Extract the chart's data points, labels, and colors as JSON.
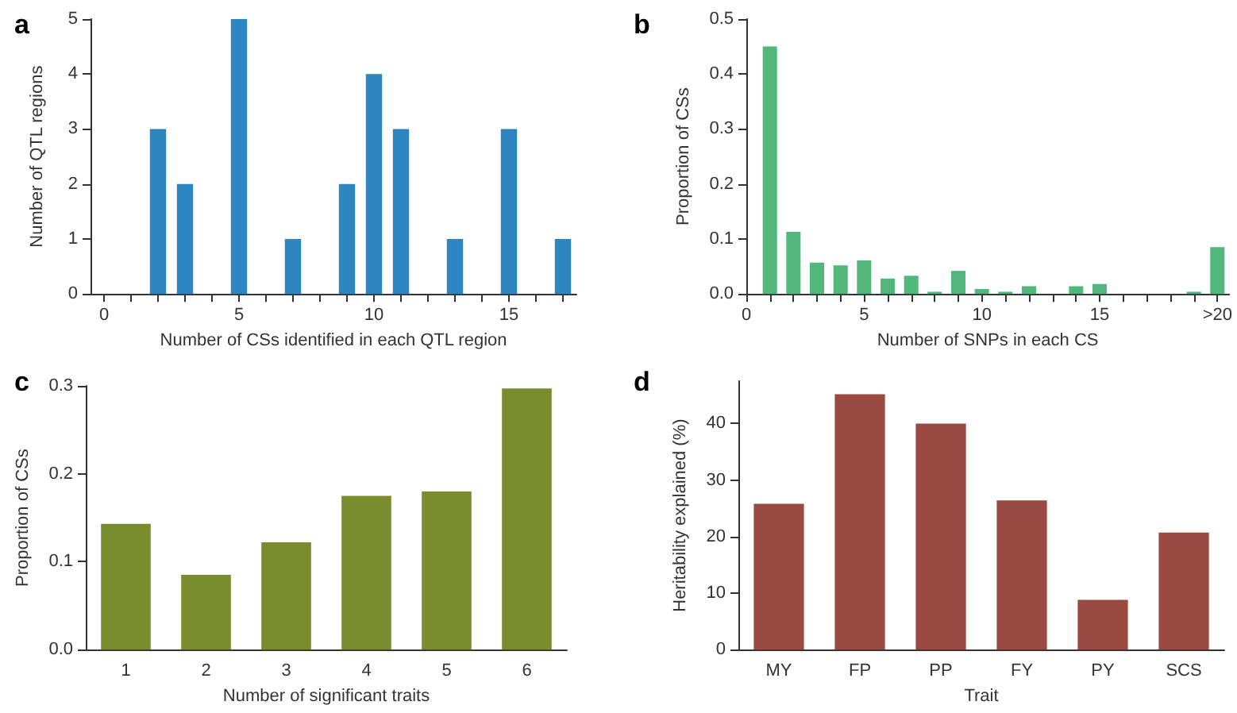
{
  "chart_data": [
    {
      "type": "bar",
      "title": "a",
      "xlabel": "Number of CSs identified in each QTL region",
      "ylabel": "Number of QTL regions",
      "color": "#2e86c1",
      "x": [
        2,
        3,
        5,
        7,
        9,
        10,
        11,
        13,
        15,
        17
      ],
      "values": [
        3,
        2,
        5,
        1,
        2,
        4,
        3,
        1,
        3,
        1
      ],
      "xlim": [
        -0.5,
        17.5
      ],
      "xticks": [
        0,
        {
          "value": 1,
          "label": null
        },
        {
          "value": 2,
          "label": null
        },
        {
          "value": 3,
          "label": null
        },
        {
          "value": 4,
          "label": null
        },
        5,
        {
          "value": 6,
          "label": null
        },
        {
          "value": 7,
          "label": null
        },
        {
          "value": 8,
          "label": null
        },
        {
          "value": 9,
          "label": null
        },
        10,
        {
          "value": 11,
          "label": null
        },
        {
          "value": 12,
          "label": null
        },
        {
          "value": 13,
          "label": null
        },
        {
          "value": 14,
          "label": null
        },
        15,
        {
          "value": 16,
          "label": null
        },
        {
          "value": 17,
          "label": null
        }
      ],
      "ylim": [
        0,
        5
      ],
      "yticks": [
        0,
        1,
        2,
        3,
        4,
        5
      ]
    },
    {
      "type": "bar",
      "title": "b",
      "xlabel": "Number of SNPs in each CS",
      "ylabel": "Proportion of CSs",
      "color": "#52b77a",
      "x": [
        1,
        2,
        3,
        4,
        5,
        6,
        7,
        8,
        9,
        10,
        11,
        12,
        14,
        15,
        19,
        20
      ],
      "values": [
        0.45,
        0.113,
        0.057,
        0.052,
        0.061,
        0.028,
        0.033,
        0.004,
        0.042,
        0.009,
        0.004,
        0.014,
        0.014,
        0.018,
        0.004,
        0.085
      ],
      "xlim": [
        0,
        20.5
      ],
      "xticks": [
        0,
        {
          "value": 1,
          "label": null
        },
        {
          "value": 2,
          "label": null
        },
        {
          "value": 3,
          "label": null
        },
        {
          "value": 4,
          "label": null
        },
        5,
        {
          "value": 6,
          "label": null
        },
        {
          "value": 7,
          "label": null
        },
        {
          "value": 8,
          "label": null
        },
        {
          "value": 9,
          "label": null
        },
        10,
        {
          "value": 11,
          "label": null
        },
        {
          "value": 12,
          "label": null
        },
        {
          "value": 13,
          "label": null
        },
        {
          "value": 14,
          "label": null
        },
        15,
        {
          "value": 16,
          "label": null
        },
        {
          "value": 17,
          "label": null
        },
        {
          "value": 18,
          "label": null
        },
        {
          "value": 19,
          "label": null
        },
        {
          "value": 20,
          "label": ">20"
        }
      ],
      "ylim": [
        0,
        0.5
      ],
      "yticks": [
        {
          "value": 0,
          "label": "0.0"
        },
        0.1,
        0.2,
        0.3,
        0.4,
        0.5
      ]
    },
    {
      "type": "bar",
      "title": "c",
      "xlabel": "Number of significant traits",
      "ylabel": "Proportion of CSs",
      "color": "#7a8c2e",
      "categories": [
        "1",
        "2",
        "3",
        "4",
        "5",
        "6"
      ],
      "values": [
        0.143,
        0.085,
        0.122,
        0.175,
        0.18,
        0.297
      ],
      "ylim": [
        0,
        0.3
      ],
      "yticks": [
        {
          "value": 0,
          "label": "0.0"
        },
        0.1,
        0.2,
        0.3
      ]
    },
    {
      "type": "bar",
      "title": "d",
      "xlabel": "Trait",
      "ylabel": "Heritability explained (%)",
      "color": "#9a4a40",
      "categories": [
        "MY",
        "FP",
        "PP",
        "FY",
        "PY",
        "SCS"
      ],
      "values": [
        25.8,
        45.2,
        40,
        26.4,
        8.8,
        20.7
      ],
      "ylim": [
        0,
        47.5
      ],
      "yticks": [
        0,
        10,
        20,
        30,
        40
      ]
    }
  ]
}
